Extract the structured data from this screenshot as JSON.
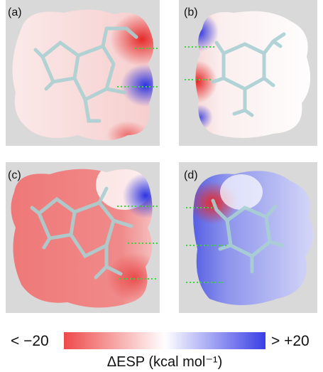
{
  "panels": [
    {
      "label": "(a)"
    },
    {
      "label": "(b)"
    },
    {
      "label": "(c)"
    },
    {
      "label": "(d)"
    }
  ],
  "colorbar": {
    "min_label": "< −20",
    "max_label": "> +20",
    "title": "ΔESP (kcal mol⁻¹)"
  }
}
